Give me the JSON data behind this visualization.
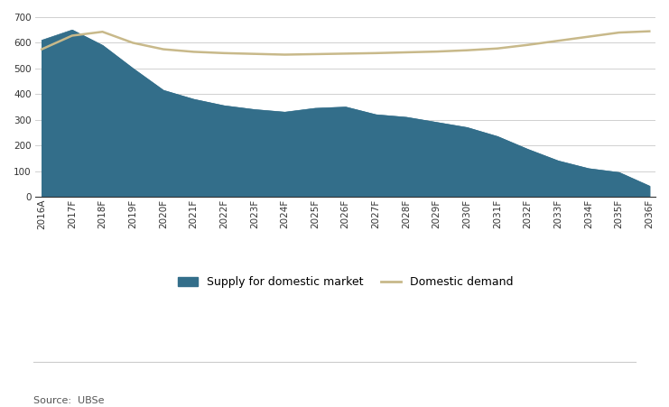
{
  "years": [
    "2016A",
    "2017F",
    "2018F",
    "2019F",
    "2020F",
    "2021F",
    "2022F",
    "2023F",
    "2024F",
    "2025F",
    "2026F",
    "2027F",
    "2028F",
    "2029F",
    "2030F",
    "2031F",
    "2032F",
    "2033F",
    "2034F",
    "2035F",
    "2036F"
  ],
  "supply": [
    610,
    650,
    590,
    500,
    415,
    380,
    355,
    340,
    330,
    345,
    350,
    320,
    310,
    290,
    270,
    235,
    185,
    140,
    110,
    95,
    42
  ],
  "demand": [
    575,
    628,
    643,
    600,
    575,
    565,
    560,
    557,
    554,
    556,
    558,
    560,
    563,
    566,
    571,
    578,
    592,
    608,
    624,
    640,
    645
  ],
  "supply_color": "#336e8a",
  "demand_color": "#c8b98a",
  "supply_label": "Supply for domestic market",
  "demand_label": "Domestic demand",
  "ylim": [
    0,
    700
  ],
  "yticks": [
    0,
    100,
    200,
    300,
    400,
    500,
    600,
    700
  ],
  "source_text": "Source:  UBSe",
  "background_color": "#ffffff",
  "grid_color": "#d0d0d0",
  "tick_fontsize": 7.5,
  "legend_fontsize": 9,
  "source_fontsize": 8
}
